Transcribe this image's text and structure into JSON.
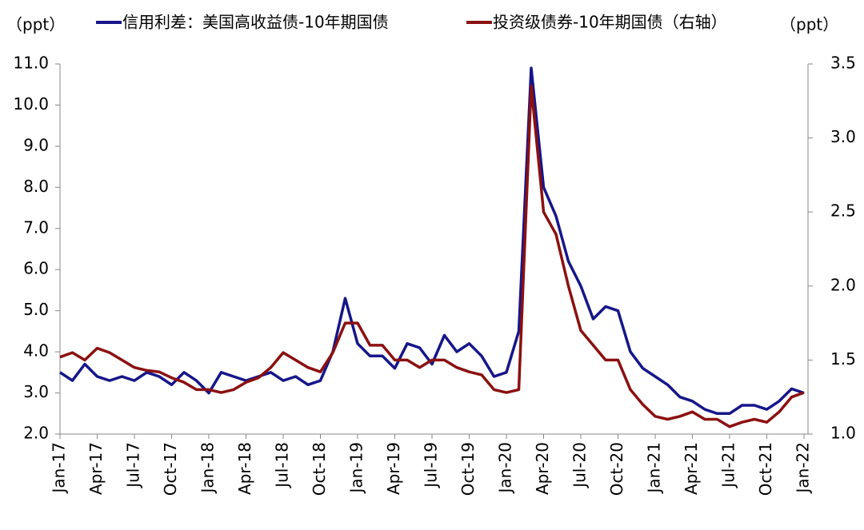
{
  "chart_data": {
    "type": "line",
    "y_unit": "（ppt）",
    "y2_unit": "（ppt）",
    "categories": [
      "Jan-17",
      null,
      null,
      "Apr-17",
      null,
      null,
      "Jul-17",
      null,
      null,
      "Oct-17",
      null,
      null,
      "Jan-18",
      null,
      null,
      "Apr-18",
      null,
      null,
      "Jul-18",
      null,
      null,
      "Oct-18",
      null,
      null,
      "Jan-19",
      null,
      null,
      "Apr-19",
      null,
      null,
      "Jul-19",
      null,
      null,
      "Oct-19",
      null,
      null,
      "Jan-20",
      null,
      null,
      "Apr-20",
      null,
      null,
      "Jul-20",
      null,
      null,
      "Oct-20",
      null,
      null,
      "Jan-21",
      null,
      null,
      "Apr-21",
      null,
      null,
      "Jul-21",
      null,
      null,
      "Oct-21",
      null,
      null,
      "Jan-22"
    ],
    "series": [
      {
        "name": "信用利差：美国高收益债-10年期国债",
        "color": "#16168a",
        "axis": "y",
        "values": [
          3.5,
          3.3,
          3.7,
          3.4,
          3.3,
          3.4,
          3.3,
          3.5,
          3.4,
          3.2,
          3.5,
          3.3,
          3.0,
          3.5,
          3.4,
          3.3,
          3.4,
          3.5,
          3.3,
          3.4,
          3.2,
          3.3,
          4.0,
          5.3,
          4.2,
          3.9,
          3.9,
          3.6,
          4.2,
          4.1,
          3.7,
          4.4,
          4.0,
          4.2,
          3.9,
          3.4,
          3.5,
          4.5,
          10.9,
          8.0,
          7.3,
          6.2,
          5.6,
          4.8,
          5.1,
          5.0,
          4.0,
          3.6,
          3.4,
          3.2,
          2.9,
          2.8,
          2.6,
          2.5,
          2.5,
          2.7,
          2.7,
          2.6,
          2.8,
          3.1,
          3.0
        ]
      },
      {
        "name": "投资级债券-10年期国债（右轴）",
        "color": "#8b1010",
        "axis": "y2",
        "values": [
          1.52,
          1.55,
          1.5,
          1.58,
          1.55,
          1.5,
          1.45,
          1.43,
          1.42,
          1.38,
          1.35,
          1.3,
          1.3,
          1.28,
          1.3,
          1.35,
          1.38,
          1.45,
          1.55,
          1.5,
          1.45,
          1.42,
          1.55,
          1.75,
          1.75,
          1.6,
          1.6,
          1.5,
          1.5,
          1.45,
          1.5,
          1.5,
          1.45,
          1.42,
          1.4,
          1.3,
          1.28,
          1.3,
          3.35,
          2.5,
          2.35,
          2.0,
          1.7,
          1.6,
          1.5,
          1.5,
          1.3,
          1.2,
          1.12,
          1.1,
          1.12,
          1.15,
          1.1,
          1.1,
          1.05,
          1.08,
          1.1,
          1.08,
          1.15,
          1.25,
          1.28
        ]
      }
    ],
    "ylim": [
      2,
      11
    ],
    "yticks": [
      {
        "value": 2,
        "label": "2.0"
      },
      {
        "value": 3,
        "label": "3.0"
      },
      {
        "value": 4,
        "label": "4.0"
      },
      {
        "value": 5,
        "label": "5.0"
      },
      {
        "value": 6,
        "label": "6.0"
      },
      {
        "value": 7,
        "label": "7.0"
      },
      {
        "value": 8,
        "label": "8.0"
      },
      {
        "value": 9,
        "label": "9.0"
      },
      {
        "value": 10,
        "label": "10.0"
      },
      {
        "value": 11,
        "label": "11.0"
      }
    ],
    "y2lim": [
      1,
      3.5
    ],
    "y2ticks": [
      {
        "value": 1,
        "label": "1.0"
      },
      1.5,
      {
        "value": 2,
        "label": "2.0"
      },
      2.5,
      {
        "value": 3,
        "label": "3.0"
      },
      3.5
    ]
  }
}
